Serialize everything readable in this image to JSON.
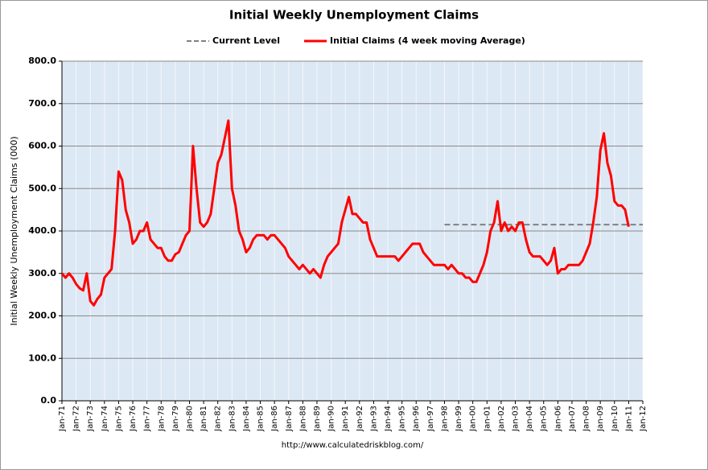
{
  "chart_data": {
    "type": "line",
    "title": "Initial Weekly Unemployment Claims",
    "y_label": "Initial Weekly Unemployment Claims (000)",
    "source": "http://www.calculatedriskblog.com/",
    "grid": true,
    "xlim": [
      1971,
      2012
    ],
    "xticks": [
      {
        "value": 1971,
        "label": "Jan-71"
      },
      {
        "value": 1972,
        "label": "Jan-72"
      },
      {
        "value": 1973,
        "label": "Jan-73"
      },
      {
        "value": 1974,
        "label": "Jan-74"
      },
      {
        "value": 1975,
        "label": "Jan-75"
      },
      {
        "value": 1976,
        "label": "Jan-76"
      },
      {
        "value": 1977,
        "label": "Jan-77"
      },
      {
        "value": 1978,
        "label": "Jan-78"
      },
      {
        "value": 1979,
        "label": "Jan-79"
      },
      {
        "value": 1980,
        "label": "Jan-80"
      },
      {
        "value": 1981,
        "label": "Jan-81"
      },
      {
        "value": 1982,
        "label": "Jan-82"
      },
      {
        "value": 1983,
        "label": "Jan-83"
      },
      {
        "value": 1984,
        "label": "Jan-84"
      },
      {
        "value": 1985,
        "label": "Jan-85"
      },
      {
        "value": 1986,
        "label": "Jan-86"
      },
      {
        "value": 1987,
        "label": "Jan-87"
      },
      {
        "value": 1988,
        "label": "Jan-88"
      },
      {
        "value": 1989,
        "label": "Jan-89"
      },
      {
        "value": 1990,
        "label": "Jan-90"
      },
      {
        "value": 1991,
        "label": "Jan-91"
      },
      {
        "value": 1992,
        "label": "Jan-92"
      },
      {
        "value": 1993,
        "label": "Jan-93"
      },
      {
        "value": 1994,
        "label": "Jan-94"
      },
      {
        "value": 1995,
        "label": "Jan-95"
      },
      {
        "value": 1996,
        "label": "Jan-96"
      },
      {
        "value": 1997,
        "label": "Jan-97"
      },
      {
        "value": 1998,
        "label": "Jan-98"
      },
      {
        "value": 1999,
        "label": "Jan-99"
      },
      {
        "value": 2000,
        "label": "Jan-00"
      },
      {
        "value": 2001,
        "label": "Jan-01"
      },
      {
        "value": 2002,
        "label": "Jan-02"
      },
      {
        "value": 2003,
        "label": "Jan-03"
      },
      {
        "value": 2004,
        "label": "Jan-04"
      },
      {
        "value": 2005,
        "label": "Jan-05"
      },
      {
        "value": 2006,
        "label": "Jan-06"
      },
      {
        "value": 2007,
        "label": "Jan-07"
      },
      {
        "value": 2008,
        "label": "Jan-08"
      },
      {
        "value": 2009,
        "label": "Jan-09"
      },
      {
        "value": 2010,
        "label": "Jan-10"
      },
      {
        "value": 2011,
        "label": "Jan-11"
      },
      {
        "value": 2012,
        "label": "Jan-12"
      }
    ],
    "ylim": [
      0,
      800
    ],
    "yticks": [
      {
        "value": 0,
        "label": "0.0"
      },
      {
        "value": 100,
        "label": "100.0"
      },
      {
        "value": 200,
        "label": "200.0"
      },
      {
        "value": 300,
        "label": "300.0"
      },
      {
        "value": 400,
        "label": "400.0"
      },
      {
        "value": 500,
        "label": "500.0"
      },
      {
        "value": 600,
        "label": "600.0"
      },
      {
        "value": 700,
        "label": "700.0"
      },
      {
        "value": 800,
        "label": "800.0"
      }
    ],
    "series": [
      {
        "name": "Current Level",
        "color": "#808080",
        "dashed": true,
        "x": [
          1998,
          2012
        ],
        "values": [
          415,
          415
        ]
      },
      {
        "name": "Initial Claims (4 week moving Average)",
        "color": "#ff0000",
        "dashed": false,
        "x": [
          1971,
          1971.25,
          1971.5,
          1971.75,
          1972,
          1972.25,
          1972.5,
          1972.75,
          1973,
          1973.25,
          1973.5,
          1973.75,
          1974,
          1974.25,
          1974.5,
          1974.75,
          1975,
          1975.25,
          1975.5,
          1975.75,
          1976,
          1976.25,
          1976.5,
          1976.75,
          1977,
          1977.25,
          1977.5,
          1977.75,
          1978,
          1978.25,
          1978.5,
          1978.75,
          1979,
          1979.25,
          1979.5,
          1979.75,
          1980,
          1980.25,
          1980.5,
          1980.75,
          1981,
          1981.25,
          1981.5,
          1981.75,
          1982,
          1982.25,
          1982.5,
          1982.75,
          1983,
          1983.25,
          1983.5,
          1983.75,
          1984,
          1984.25,
          1984.5,
          1984.75,
          1985,
          1985.25,
          1985.5,
          1985.75,
          1986,
          1986.25,
          1986.5,
          1986.75,
          1987,
          1987.25,
          1987.5,
          1987.75,
          1988,
          1988.25,
          1988.5,
          1988.75,
          1989,
          1989.25,
          1989.5,
          1989.75,
          1990,
          1990.25,
          1990.5,
          1990.75,
          1991,
          1991.25,
          1991.5,
          1991.75,
          1992,
          1992.25,
          1992.5,
          1992.75,
          1993,
          1993.25,
          1993.5,
          1993.75,
          1994,
          1994.25,
          1994.5,
          1994.75,
          1995,
          1995.25,
          1995.5,
          1995.75,
          1996,
          1996.25,
          1996.5,
          1996.75,
          1997,
          1997.25,
          1997.5,
          1997.75,
          1998,
          1998.25,
          1998.5,
          1998.75,
          1999,
          1999.25,
          1999.5,
          1999.75,
          2000,
          2000.25,
          2000.5,
          2000.75,
          2001,
          2001.25,
          2001.5,
          2001.75,
          2002,
          2002.25,
          2002.5,
          2002.75,
          2003,
          2003.25,
          2003.5,
          2003.75,
          2004,
          2004.25,
          2004.5,
          2004.75,
          2005,
          2005.25,
          2005.5,
          2005.75,
          2006,
          2006.25,
          2006.5,
          2006.75,
          2007,
          2007.25,
          2007.5,
          2007.75,
          2008,
          2008.25,
          2008.5,
          2008.75,
          2009,
          2009.25,
          2009.5,
          2009.75,
          2010,
          2010.25,
          2010.5,
          2010.75,
          2011
        ],
        "values": [
          300,
          290,
          300,
          290,
          275,
          265,
          260,
          300,
          235,
          225,
          240,
          250,
          290,
          300,
          310,
          400,
          540,
          520,
          450,
          420,
          370,
          380,
          400,
          400,
          420,
          380,
          370,
          360,
          360,
          340,
          330,
          330,
          345,
          350,
          370,
          390,
          400,
          600,
          500,
          420,
          410,
          420,
          440,
          500,
          560,
          580,
          620,
          660,
          500,
          460,
          400,
          380,
          350,
          360,
          380,
          390,
          390,
          390,
          380,
          390,
          390,
          380,
          370,
          360,
          340,
          330,
          320,
          310,
          320,
          310,
          300,
          310,
          300,
          290,
          320,
          340,
          350,
          360,
          370,
          420,
          450,
          480,
          440,
          440,
          430,
          420,
          420,
          380,
          360,
          340,
          340,
          340,
          340,
          340,
          340,
          330,
          340,
          350,
          360,
          370,
          370,
          370,
          350,
          340,
          330,
          320,
          320,
          320,
          320,
          310,
          320,
          310,
          300,
          300,
          290,
          290,
          280,
          280,
          300,
          320,
          350,
          400,
          420,
          470,
          400,
          420,
          400,
          410,
          400,
          420,
          420,
          380,
          350,
          340,
          340,
          340,
          330,
          320,
          330,
          360,
          300,
          310,
          310,
          320,
          320,
          320,
          320,
          330,
          350,
          370,
          420,
          480,
          590,
          630,
          560,
          530,
          470,
          460,
          460,
          450,
          410
        ]
      }
    ]
  }
}
